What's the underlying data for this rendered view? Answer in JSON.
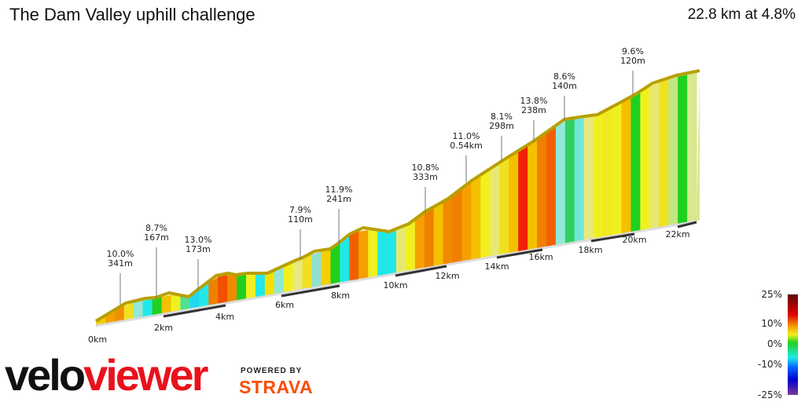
{
  "header": {
    "title": "The Dam Valley uphill challenge",
    "summary": "22.8 km at 4.8%"
  },
  "chart_data": {
    "type": "area",
    "title": "The Dam Valley uphill challenge",
    "total_distance_km": 22.8,
    "average_gradient_pct": 4.8,
    "x_ticks": [
      "0km",
      "2km",
      "4km",
      "6km",
      "8km",
      "10km",
      "12km",
      "14km",
      "16km",
      "18km",
      "20km",
      "22km"
    ],
    "annotations": [
      {
        "gradient": "10.0%",
        "length": "341m"
      },
      {
        "gradient": "8.7%",
        "length": "167m"
      },
      {
        "gradient": "13.0%",
        "length": "173m"
      },
      {
        "gradient": "7.9%",
        "length": "110m"
      },
      {
        "gradient": "11.9%",
        "length": "241m"
      },
      {
        "gradient": "10.8%",
        "length": "333m"
      },
      {
        "gradient": "11.0%",
        "length": "0.54km"
      },
      {
        "gradient": "8.1%",
        "length": "298m"
      },
      {
        "gradient": "13.8%",
        "length": "238m"
      },
      {
        "gradient": "8.6%",
        "length": "140m"
      },
      {
        "gradient": "9.6%",
        "length": "120m"
      }
    ],
    "legend": {
      "labels": [
        "25%",
        "10%",
        "0%",
        "-10%",
        "-25%"
      ],
      "colors": [
        "#5a0a0a",
        "#e00000",
        "#f5a000",
        "#f0f020",
        "#20d020",
        "#20e8e8",
        "#0060ff",
        "#0000d0",
        "#7a3a9a"
      ]
    }
  },
  "logo": {
    "part1": "velo",
    "part2": "viewer",
    "powered": "POWERED BY",
    "strava": "STRAVA"
  }
}
